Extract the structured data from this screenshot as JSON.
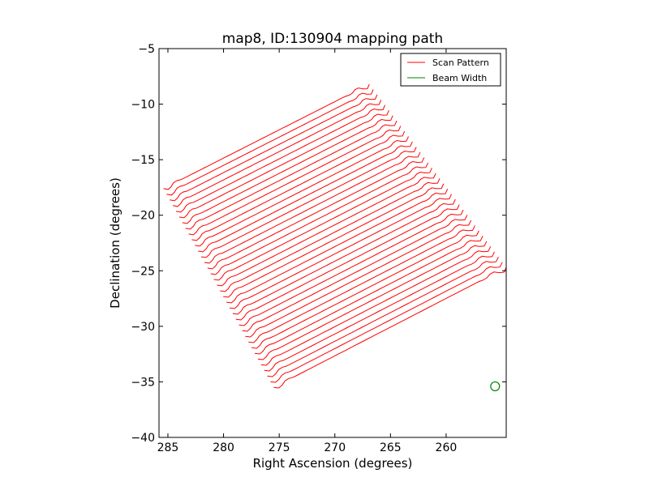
{
  "chart_data": {
    "type": "line",
    "title": "map8, ID:130904 mapping path",
    "xlabel": "Right Ascension (degrees)",
    "ylabel": "Declination (degrees)",
    "xlim": [
      285.8,
      254.6
    ],
    "ylim": [
      -40,
      -5
    ],
    "x_ticks": [
      285,
      280,
      275,
      270,
      265,
      260
    ],
    "x_tick_labels": [
      "285",
      "280",
      "275",
      "270",
      "265",
      "260"
    ],
    "y_ticks": [
      -5,
      -10,
      -15,
      -20,
      -25,
      -30,
      -35,
      -40
    ],
    "y_tick_labels": [
      "−5",
      "−10",
      "−15",
      "−20",
      "−25",
      "−30",
      "−35",
      "−40"
    ],
    "grid": false,
    "legend": {
      "placement": "top-right",
      "entries": [
        {
          "label": "Scan Pattern",
          "color": "#ff0000"
        },
        {
          "label": "Beam Width",
          "color": "#008000"
        }
      ]
    },
    "series": [
      {
        "name": "Scan Pattern",
        "color": "#ff0000",
        "scan_lines": 36,
        "corners": {
          "first_start": [
            285.4,
            -17.6
          ],
          "first_end": [
            266.9,
            -8.2
          ],
          "last_start": [
            275.5,
            -35.5
          ],
          "last_end": [
            254.6,
            -24.7
          ]
        },
        "wiggle_amplitude_deg": 0.35
      },
      {
        "name": "Beam Width",
        "color": "#008000",
        "center": [
          255.6,
          -35.4
        ],
        "radius_deg": 0.4
      }
    ]
  }
}
